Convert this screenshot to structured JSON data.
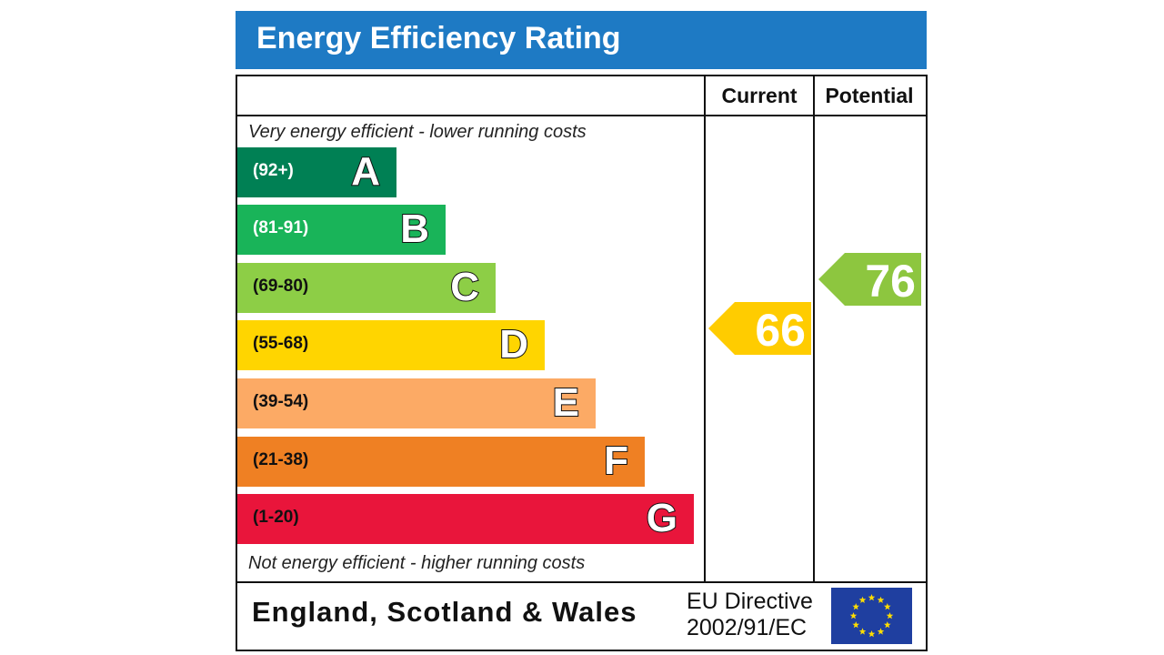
{
  "header": {
    "title": "Energy Efficiency Rating"
  },
  "columns": {
    "current": "Current",
    "potential": "Potential"
  },
  "captions": {
    "top": "Very energy efficient - lower running costs",
    "bottom": "Not energy efficient - higher running costs"
  },
  "footer": {
    "region": "England, Scotland & Wales",
    "directive_line1": "EU Directive",
    "directive_line2": "2002/91/EC",
    "flag_icon": "eu-flag-icon"
  },
  "chart_data": {
    "type": "bar",
    "bands": [
      {
        "letter": "A",
        "range": "(92+)",
        "min": 92,
        "max": 100,
        "color": "#008054",
        "label_color": "#ffffff"
      },
      {
        "letter": "B",
        "range": "(81-91)",
        "min": 81,
        "max": 91,
        "color": "#19b459",
        "label_color": "#ffffff"
      },
      {
        "letter": "C",
        "range": "(69-80)",
        "min": 69,
        "max": 80,
        "color": "#8dce46",
        "label_color": "#111111"
      },
      {
        "letter": "D",
        "range": "(55-68)",
        "min": 55,
        "max": 68,
        "color": "#ffd500",
        "label_color": "#111111"
      },
      {
        "letter": "E",
        "range": "(39-54)",
        "min": 39,
        "max": 54,
        "color": "#fcaa65",
        "label_color": "#111111"
      },
      {
        "letter": "F",
        "range": "(21-38)",
        "min": 21,
        "max": 38,
        "color": "#ef8023",
        "label_color": "#111111"
      },
      {
        "letter": "G",
        "range": "(1-20)",
        "min": 1,
        "max": 20,
        "color": "#e9153b",
        "label_color": "#111111"
      }
    ],
    "current": {
      "value": 66,
      "label": "66",
      "color": "#ffcc00"
    },
    "potential": {
      "value": 76,
      "label": "76",
      "color": "#8dc63f"
    }
  }
}
